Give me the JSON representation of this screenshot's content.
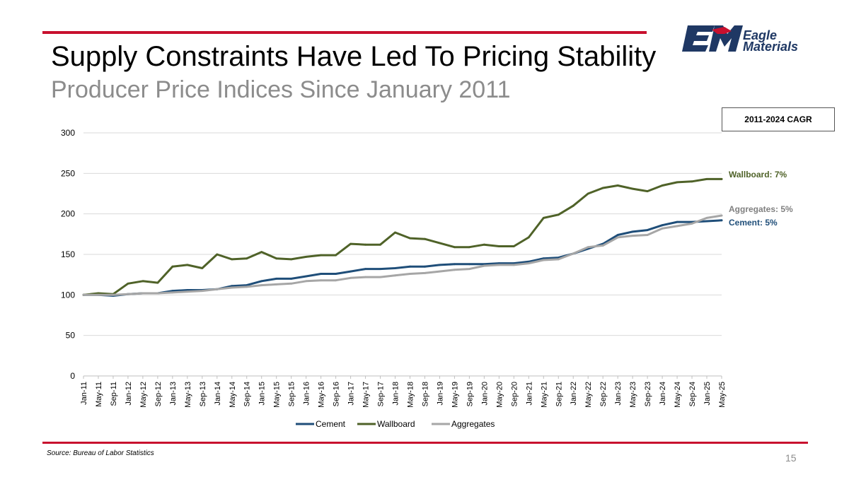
{
  "header": {
    "title": "Supply Constraints Have Led To Pricing Stability",
    "subtitle": "Producer Price Indices Since January 2011"
  },
  "logo": {
    "line1": "Eagle",
    "line2": "Materials"
  },
  "cagr": {
    "heading": "2011-2024 CAGR",
    "wallboard": "Wallboard: 7%",
    "aggregates": "Aggregates: 5%",
    "cement": "Cement: 5%"
  },
  "footer": {
    "source": "Source: Bureau of Labor Statistics",
    "page": "15"
  },
  "colors": {
    "cement": "#1f4e79",
    "wallboard": "#4f6228",
    "aggregates": "#a6a6a6",
    "accent": "#c8102e"
  },
  "chart_data": {
    "type": "line",
    "title": "",
    "xlabel": "",
    "ylabel": "",
    "ylim": [
      0,
      300
    ],
    "yticks": [
      "0",
      "50",
      "100",
      "150",
      "200",
      "250",
      "300"
    ],
    "categories": [
      "Jan-11",
      "May-11",
      "Sep-11",
      "Jan-12",
      "May-12",
      "Sep-12",
      "Jan-13",
      "May-13",
      "Sep-13",
      "Jan-14",
      "May-14",
      "Sep-14",
      "Jan-15",
      "May-15",
      "Sep-15",
      "Jan-16",
      "May-16",
      "Sep-16",
      "Jan-17",
      "May-17",
      "Sep-17",
      "Jan-18",
      "May-18",
      "Sep-18",
      "Jan-19",
      "May-19",
      "Sep-19",
      "Jan-20",
      "May-20",
      "Sep-20",
      "Jan-21",
      "May-21",
      "Sep-21",
      "Jan-22",
      "May-22",
      "Sep-22",
      "Jan-23",
      "May-23",
      "Sep-23",
      "Jan-24",
      "May-24",
      "Sep-24",
      "Jan-25",
      "May-25"
    ],
    "legend_position": "bottom",
    "series": [
      {
        "name": "Cement",
        "color": "#1f4e79",
        "values": [
          100,
          100,
          99,
          101,
          102,
          102,
          105,
          106,
          106,
          107,
          111,
          112,
          117,
          120,
          120,
          123,
          126,
          126,
          129,
          132,
          132,
          133,
          135,
          135,
          137,
          138,
          138,
          138,
          139,
          139,
          141,
          145,
          146,
          151,
          157,
          163,
          174,
          178,
          180,
          186,
          190,
          190,
          191,
          192
        ]
      },
      {
        "name": "Wallboard",
        "color": "#4f6228",
        "values": [
          100,
          102,
          101,
          114,
          117,
          115,
          135,
          137,
          133,
          150,
          144,
          145,
          153,
          145,
          144,
          147,
          149,
          149,
          163,
          162,
          162,
          177,
          170,
          169,
          164,
          159,
          159,
          162,
          160,
          160,
          171,
          195,
          199,
          210,
          225,
          232,
          235,
          231,
          228,
          235,
          239,
          240,
          243,
          243
        ]
      },
      {
        "name": "Aggregates",
        "color": "#a6a6a6",
        "values": [
          100,
          100,
          100,
          101,
          102,
          102,
          103,
          104,
          105,
          107,
          109,
          110,
          112,
          113,
          114,
          117,
          118,
          118,
          121,
          122,
          122,
          124,
          126,
          127,
          129,
          131,
          132,
          136,
          137,
          137,
          139,
          143,
          144,
          151,
          159,
          161,
          171,
          173,
          174,
          182,
          185,
          188,
          195,
          198
        ]
      }
    ]
  }
}
